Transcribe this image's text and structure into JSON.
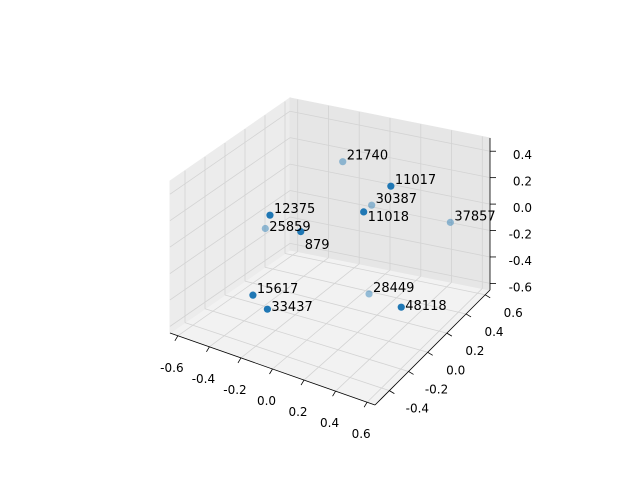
{
  "chart_data": {
    "type": "scatter",
    "projection": "3d",
    "title": "",
    "xlabel": "",
    "ylabel": "",
    "zlabel": "",
    "xlim": [
      -0.65,
      0.65
    ],
    "ylim": [
      -0.55,
      0.65
    ],
    "zlim": [
      -0.65,
      0.5
    ],
    "grid": true,
    "x_ticks": [
      "-0.6",
      "-0.4",
      "-0.2",
      "0.0",
      "0.2",
      "0.4",
      "0.6"
    ],
    "y_ticks": [
      "-0.4",
      "-0.2",
      "0.0",
      "0.2",
      "0.4",
      "0.6"
    ],
    "z_ticks": [
      "-0.6",
      "-0.4",
      "-0.2",
      "0.0",
      "0.2",
      "0.4"
    ],
    "x_tick_values": [
      -0.6,
      -0.4,
      -0.2,
      0.0,
      0.2,
      0.4,
      0.6
    ],
    "y_tick_values": [
      -0.4,
      -0.2,
      0.0,
      0.2,
      0.4,
      0.6
    ],
    "z_tick_values": [
      -0.6,
      -0.4,
      -0.2,
      0.0,
      0.2,
      0.4
    ],
    "colors": {
      "marker": "#1f77b4",
      "pane": "#f2f2f2",
      "grid": "#d3d3d3"
    },
    "points": [
      {
        "label": "21740",
        "x": -0.16,
        "y": 0.42,
        "z": 0.27,
        "shade": "light"
      },
      {
        "label": "11017",
        "x": 0.05,
        "y": 0.58,
        "z": 0.04,
        "shade": "dark"
      },
      {
        "label": "30387",
        "x": -0.03,
        "y": 0.51,
        "z": -0.08,
        "shade": "light"
      },
      {
        "label": "11018",
        "x": -0.12,
        "y": 0.57,
        "z": -0.19,
        "shade": "dark"
      },
      {
        "label": "12375",
        "x": -0.47,
        "y": 0.17,
        "z": -0.08,
        "shade": "dark"
      },
      {
        "label": "25859",
        "x": -0.5,
        "y": 0.17,
        "z": -0.19,
        "shade": "light"
      },
      {
        "label": "879",
        "x": -0.31,
        "y": 0.23,
        "z": -0.19,
        "shade": "dark"
      },
      {
        "label": "37857",
        "x": 0.48,
        "y": 0.51,
        "z": -0.08,
        "shade": "light"
      },
      {
        "label": "15617",
        "x": -0.42,
        "y": -0.08,
        "z": -0.53,
        "shade": "dark"
      },
      {
        "label": "33437",
        "x": -0.34,
        "y": -0.06,
        "z": -0.62,
        "shade": "dark"
      },
      {
        "label": "28449",
        "x": 0.13,
        "y": 0.23,
        "z": -0.53,
        "shade": "light"
      },
      {
        "label": "48118",
        "x": 0.3,
        "y": 0.29,
        "z": -0.62,
        "shade": "dark"
      }
    ]
  }
}
